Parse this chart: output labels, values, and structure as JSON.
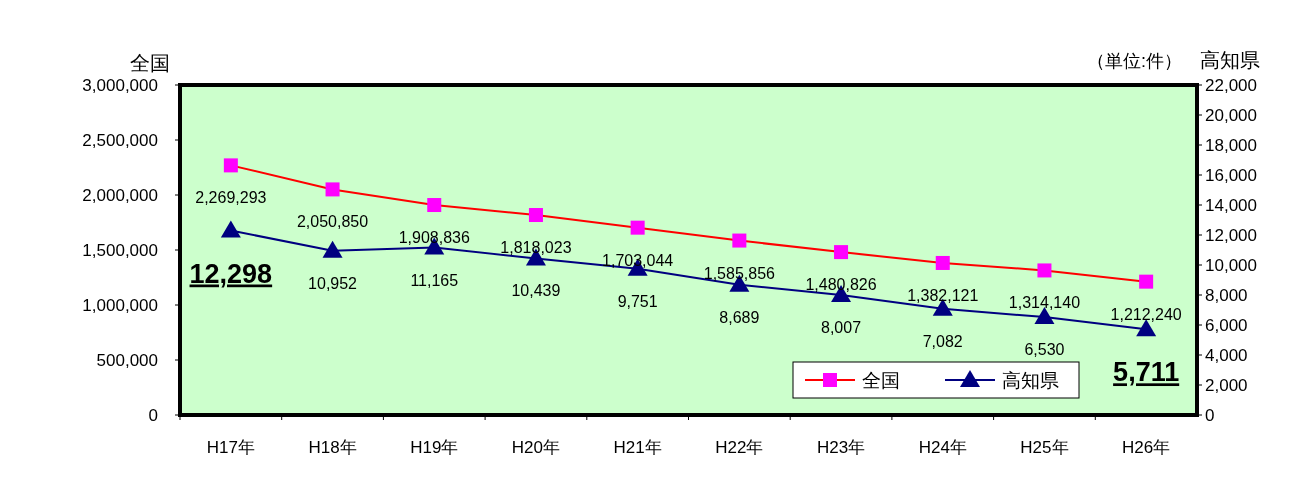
{
  "chart_data": {
    "type": "line",
    "categories": [
      "H17年",
      "H18年",
      "H19年",
      "H20年",
      "H21年",
      "H22年",
      "H23年",
      "H24年",
      "H25年",
      "H26年"
    ],
    "ylabel": "全国",
    "y2label": "高知県",
    "annotations": [
      "（単位:件）"
    ],
    "ylim": [
      0,
      3000000
    ],
    "yticks": [
      0,
      {
        "value": 500000,
        "label": "500,000"
      },
      {
        "value": 1000000,
        "label": "1,000,000"
      },
      {
        "value": 1500000,
        "label": "1,500,000"
      },
      {
        "value": 2000000,
        "label": "2,000,000"
      },
      {
        "value": 2500000,
        "label": "2,500,000"
      },
      {
        "value": 3000000,
        "label": "3,000,000"
      }
    ],
    "y2lim": [
      0,
      22000
    ],
    "y2ticks": [
      0,
      {
        "value": 2000,
        "label": "2,000"
      },
      {
        "value": 4000,
        "label": "4,000"
      },
      {
        "value": 6000,
        "label": "6,000"
      },
      {
        "value": 8000,
        "label": "8,000"
      },
      {
        "value": 10000,
        "label": "10,000"
      },
      {
        "value": 12000,
        "label": "12,000"
      },
      {
        "value": 14000,
        "label": "14,000"
      },
      {
        "value": 16000,
        "label": "16,000"
      },
      {
        "value": 18000,
        "label": "18,000"
      },
      {
        "value": 20000,
        "label": "20,000"
      },
      {
        "value": 22000,
        "label": "22,000"
      }
    ],
    "legend": "bottom right",
    "grid": false,
    "series": [
      {
        "name": "全国",
        "color": "#ff0000",
        "colors": [
          "#ff00ff",
          "#ff00ff",
          "#ff00ff",
          "#ff00ff",
          "#ff00ff",
          "#ff00ff",
          "#ff00ff",
          "#ff00ff",
          "#ff00ff",
          "#ff00ff"
        ],
        "marker": "square",
        "values": [
          2269293,
          2050850,
          1908836,
          1818023,
          1703044,
          1585856,
          1480826,
          1382121,
          1314140,
          1212240
        ],
        "value_labels": [
          "2,269,293",
          "2,050,850",
          "1,908,836",
          "1,818,023",
          "1,703,044",
          "1,585,856",
          "1,480,826",
          "1,382,121",
          "1,314,140",
          "1,212,240"
        ]
      },
      {
        "name": "高知県",
        "color": "#000080",
        "axis": "y2",
        "marker": "triangle",
        "values": [
          12298,
          10952,
          11165,
          10439,
          9751,
          8689,
          8007,
          7082,
          6530,
          5711
        ],
        "value_labels": [
          "12,298",
          "10,952",
          "11,165",
          "10,439",
          "9,751",
          "8,689",
          "8,007",
          "7,082",
          "6,530",
          "5,711"
        ]
      }
    ]
  }
}
